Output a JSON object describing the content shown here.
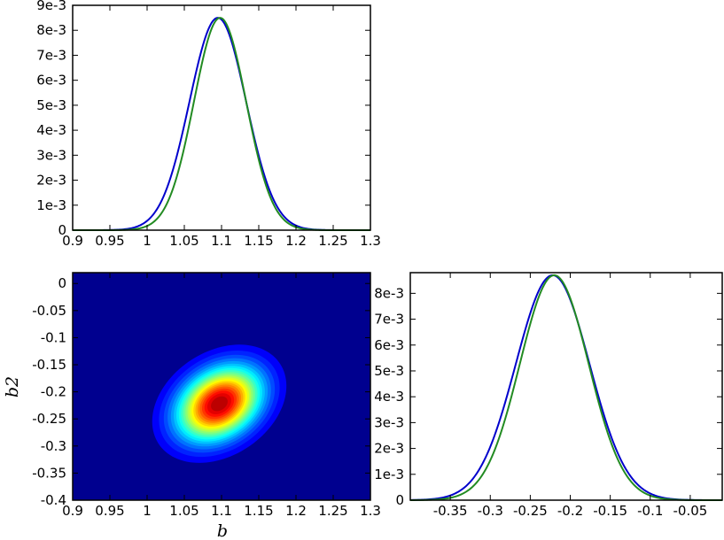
{
  "chart_data": [
    {
      "id": "marg-b",
      "type": "line",
      "xlim": [
        0.9,
        1.3
      ],
      "ylim": [
        0,
        0.009
      ],
      "x_ticks": [
        "0.9",
        "0.95",
        "1",
        "1.05",
        "1.1",
        "1.15",
        "1.2",
        "1.25",
        "1.3"
      ],
      "y_ticks": [
        "0",
        "1e-3",
        "2e-3",
        "3e-3",
        "4e-3",
        "5e-3",
        "6e-3",
        "7e-3",
        "8e-3",
        "9e-3"
      ],
      "series": [
        {
          "color": "#0000cc",
          "mu": 1.095,
          "sigma": 0.038,
          "peak": 0.0085
        },
        {
          "color": "#228b22",
          "mu": 1.098,
          "sigma": 0.035,
          "peak": 0.0085
        }
      ]
    },
    {
      "id": "joint-b-b2",
      "type": "heatmap",
      "xlabel": "b",
      "ylabel": "b2",
      "xlim": [
        0.9,
        1.3
      ],
      "ylim": [
        -0.4,
        0.02
      ],
      "x_ticks": [
        "0.9",
        "0.95",
        "1",
        "1.05",
        "1.1",
        "1.15",
        "1.2",
        "1.25",
        "1.3"
      ],
      "y_ticks": [
        "0",
        "-0.05",
        "-0.1",
        "-0.15",
        "-0.2",
        "-0.25",
        "-0.3",
        "-0.35",
        "-0.4"
      ],
      "center": [
        1.097,
        -0.222
      ],
      "sigma_b": 0.038,
      "sigma_b2": 0.046,
      "rho": 0.3,
      "colormap": "jet"
    },
    {
      "id": "marg-b2",
      "type": "line",
      "xlim": [
        -0.4,
        -0.01
      ],
      "ylim": [
        0,
        0.0088
      ],
      "x_ticks": [
        "-0.35",
        "-0.3",
        "-0.25",
        "-0.2",
        "-0.15",
        "-0.1",
        "-0.05"
      ],
      "y_ticks": [
        "0",
        "1e-3",
        "2e-3",
        "3e-3",
        "4e-3",
        "5e-3",
        "6e-3",
        "7e-3",
        "8e-3"
      ],
      "series": [
        {
          "color": "#0000cc",
          "mu": -0.222,
          "sigma": 0.046,
          "peak": 0.0087
        },
        {
          "color": "#228b22",
          "mu": -0.22,
          "sigma": 0.043,
          "peak": 0.0087
        }
      ]
    }
  ]
}
